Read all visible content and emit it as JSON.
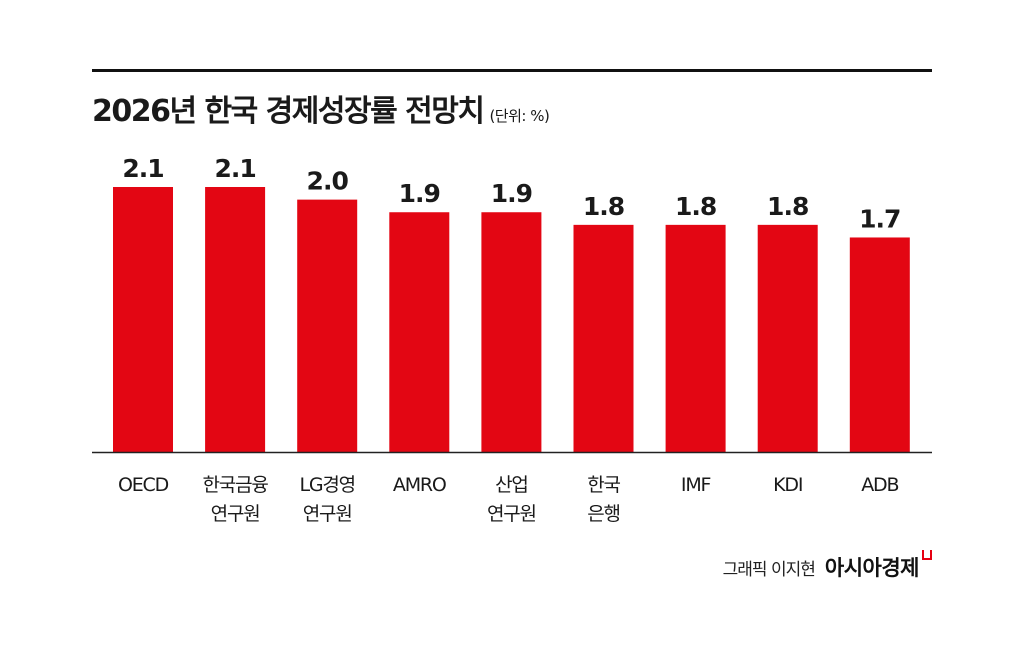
{
  "chart_data": {
    "type": "bar",
    "title": "2026년 한국 경제성장률 전망치",
    "unit_label": "(단위: %)",
    "categories": [
      [
        "OECD"
      ],
      [
        "한국금융",
        "연구원"
      ],
      [
        "LG경영",
        "연구원"
      ],
      [
        "AMRO"
      ],
      [
        "산업",
        "연구원"
      ],
      [
        "한국",
        "은행"
      ],
      [
        "IMF"
      ],
      [
        "KDI"
      ],
      [
        "ADB"
      ]
    ],
    "values": [
      2.1,
      2.1,
      2.0,
      1.9,
      1.9,
      1.8,
      1.8,
      1.8,
      1.7
    ],
    "value_labels": [
      "2.1",
      "2.1",
      "2.0",
      "1.9",
      "1.9",
      "1.8",
      "1.8",
      "1.8",
      "1.7"
    ],
    "ylim": [
      0,
      2.1
    ],
    "grid": false,
    "xlabel": "",
    "ylabel": "",
    "bar_color": "#e30613"
  },
  "footer": {
    "credit": "그래픽 이지현",
    "brand": "아시아경제"
  }
}
